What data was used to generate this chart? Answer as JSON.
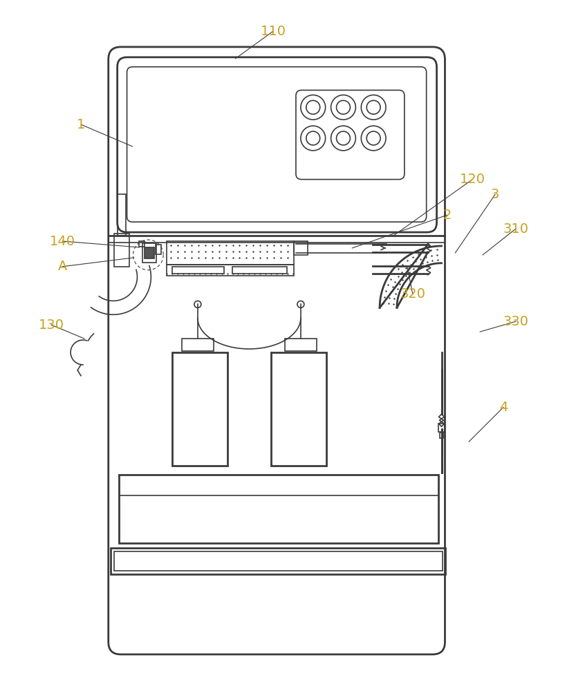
{
  "bg_color": "#ffffff",
  "line_color": "#3a3a3a",
  "label_color": "#c8a020",
  "figsize": [
    8.33,
    10.0
  ],
  "dpi": 100
}
